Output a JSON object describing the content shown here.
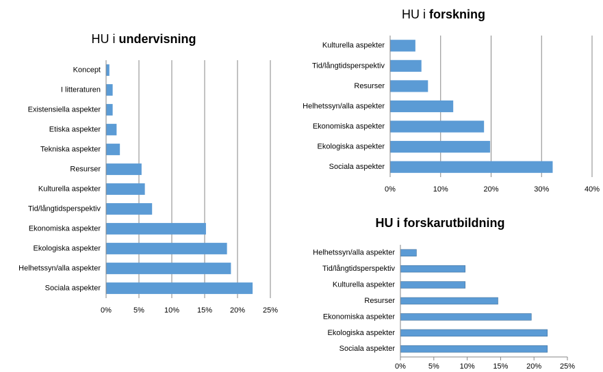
{
  "chart_data": [
    {
      "type": "bar",
      "title": "HU i undervisning",
      "title_style": "last-word-bold",
      "orientation": "horizontal",
      "color": "#5b9bd5",
      "grid": true,
      "categories": [
        "Koncept",
        "I litteraturen",
        "Existensiella aspekter",
        "Etiska aspekter",
        "Tekniska aspekter",
        "Resurser",
        "Kulturella aspekter",
        "Tid/långtidsperspektiv",
        "Ekonomiska aspekter",
        "Ekologiska aspekter",
        "Helhetssyn/alla aspekter",
        "Sociala aspekter"
      ],
      "values": [
        0.5,
        1.0,
        1.0,
        1.6,
        2.1,
        5.4,
        5.9,
        7.0,
        15.2,
        18.4,
        19.0,
        22.3
      ],
      "xlim": [
        0,
        25
      ],
      "xticks": [
        {
          "value": 0,
          "label": "0%"
        },
        {
          "value": 5,
          "label": "5%"
        },
        {
          "value": 10,
          "label": "10%"
        },
        {
          "value": 15,
          "label": "15%"
        },
        {
          "value": 20,
          "label": "20%"
        },
        {
          "value": 25,
          "label": "25%"
        }
      ]
    },
    {
      "type": "bar",
      "title": "HU i forskning",
      "title_style": "last-word-bold",
      "orientation": "horizontal",
      "color": "#5b9bd5",
      "grid": true,
      "categories": [
        "Kulturella aspekter",
        "Tid/långtidsperspektiv",
        "Resurser",
        "Helhetssyn/alla aspekter",
        "Ekonomiska aspekter",
        "Ekologiska aspekter",
        "Sociala aspekter"
      ],
      "values": [
        5.0,
        6.2,
        7.5,
        12.5,
        18.6,
        19.8,
        32.2
      ],
      "xlim": [
        0,
        40
      ],
      "xticks": [
        {
          "value": 0,
          "label": "0%"
        },
        {
          "value": 10,
          "label": "10%"
        },
        {
          "value": 20,
          "label": "20%"
        },
        {
          "value": 30,
          "label": "30%"
        },
        {
          "value": 40,
          "label": "40%"
        }
      ]
    },
    {
      "type": "bar",
      "title": "HU i forskarutbildning",
      "title_style": "bold",
      "orientation": "horizontal",
      "color": "#5b9bd5",
      "grid": false,
      "categories": [
        "Helhetssyn/alla aspekter",
        "Tid/långtidsperspektiv",
        "Kulturella aspekter",
        "Resurser",
        "Ekonomiska aspekter",
        "Ekologiska aspekter",
        "Sociala aspekter"
      ],
      "values": [
        2.4,
        9.7,
        9.7,
        14.6,
        19.6,
        22.0,
        22.0
      ],
      "xlim": [
        0,
        25
      ],
      "xticks": [
        {
          "value": 0,
          "label": "0%"
        },
        {
          "value": 5,
          "label": "5%"
        },
        {
          "value": 10,
          "label": "10%"
        },
        {
          "value": 15,
          "label": "15%"
        },
        {
          "value": 20,
          "label": "20%"
        },
        {
          "value": 25,
          "label": "25%"
        }
      ]
    }
  ]
}
